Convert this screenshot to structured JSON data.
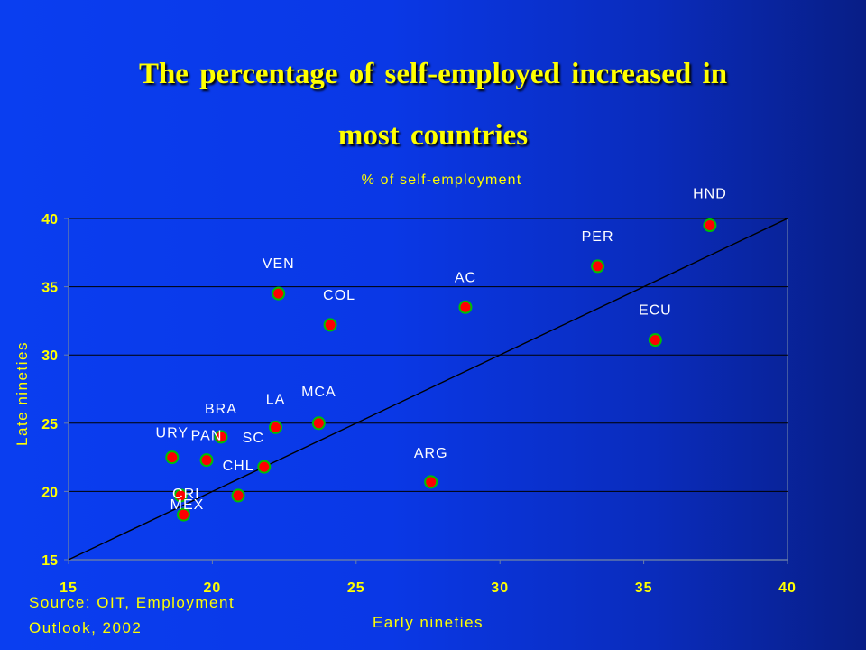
{
  "slide": {
    "title_line1": "The percentage of self-employed increased in",
    "title_line2": "most countries",
    "source_line1": "Source: OIT, Employment",
    "source_line2": "Outlook, 2002"
  },
  "colors": {
    "background": "#0a38e6",
    "title": "#ffff00",
    "axis_text": "#ffff00",
    "point_label": "#ffffff",
    "marker_fill": "#ff0000",
    "marker_outline": "#00c000",
    "gridline": "#000000",
    "diagonal_line": "#000000"
  },
  "chart_data": {
    "type": "scatter",
    "title": "% of self-employment",
    "xlabel": "Early nineties",
    "ylabel": "Late nineties",
    "xlim": [
      15,
      40
    ],
    "ylim": [
      15,
      40
    ],
    "xticks": [
      15,
      20,
      25,
      30,
      35,
      40
    ],
    "yticks": [
      15,
      20,
      25,
      30,
      35,
      40
    ],
    "grid": "horizontal",
    "reference_line": {
      "from": [
        15,
        15
      ],
      "to": [
        40,
        40
      ]
    },
    "points": [
      {
        "label": "HND",
        "x": 37.3,
        "y": 39.5
      },
      {
        "label": "PER",
        "x": 33.4,
        "y": 36.5
      },
      {
        "label": "ECU",
        "x": 35.4,
        "y": 31.1
      },
      {
        "label": "AC",
        "x": 28.8,
        "y": 33.5
      },
      {
        "label": "VEN",
        "x": 22.3,
        "y": 34.5
      },
      {
        "label": "COL",
        "x": 24.1,
        "y": 32.2
      },
      {
        "label": "MCA",
        "x": 23.7,
        "y": 25.0
      },
      {
        "label": "LA",
        "x": 22.2,
        "y": 24.7
      },
      {
        "label": "SC",
        "x": 21.8,
        "y": 21.8
      },
      {
        "label": "BRA",
        "x": 20.3,
        "y": 24.0
      },
      {
        "label": "PAN",
        "x": 19.8,
        "y": 22.3
      },
      {
        "label": "URY",
        "x": 18.6,
        "y": 22.5
      },
      {
        "label": "CRI",
        "x": 18.9,
        "y": 19.7
      },
      {
        "label": "MEX",
        "x": 19.0,
        "y": 18.3
      },
      {
        "label": "CHL",
        "x": 20.9,
        "y": 19.7
      },
      {
        "label": "ARG",
        "x": 27.6,
        "y": 20.7
      }
    ]
  }
}
